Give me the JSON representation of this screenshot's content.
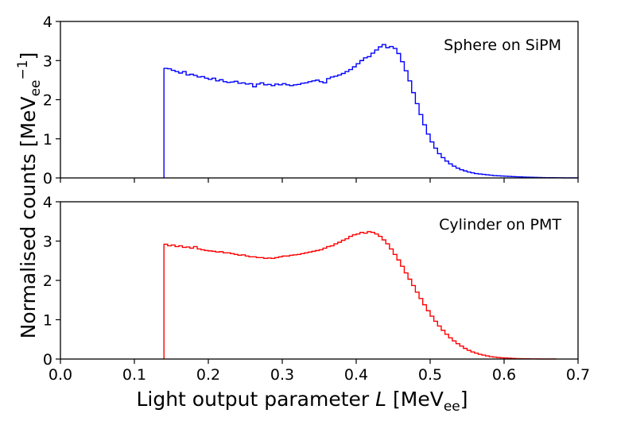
{
  "chart_data": {
    "type": "histogram",
    "xlabel": {
      "prefix": "Light output parameter ",
      "var": "L",
      "unit_open": " [MeV",
      "unit_sub": "ee",
      "unit_close": "]"
    },
    "ylabel": {
      "prefix": "Normalised counts [MeV",
      "sub": "ee",
      "sup": "−1",
      "close": "]"
    },
    "xlim": [
      0.0,
      0.7
    ],
    "ylim": [
      0,
      4
    ],
    "xticks": [
      "0.0",
      "0.1",
      "0.2",
      "0.3",
      "0.4",
      "0.5",
      "0.6",
      "0.7"
    ],
    "yticks": [
      "0",
      "1",
      "2",
      "3",
      "4"
    ],
    "bin_width": 0.005,
    "panels": [
      {
        "label": "Sphere on SiPM",
        "color": "#0000ff",
        "x_start": 0.14,
        "values": [
          2.8,
          2.79,
          2.75,
          2.72,
          2.68,
          2.72,
          2.63,
          2.65,
          2.62,
          2.58,
          2.59,
          2.55,
          2.52,
          2.55,
          2.48,
          2.51,
          2.46,
          2.44,
          2.45,
          2.47,
          2.42,
          2.43,
          2.4,
          2.41,
          2.33,
          2.4,
          2.43,
          2.38,
          2.39,
          2.36,
          2.4,
          2.38,
          2.41,
          2.38,
          2.36,
          2.38,
          2.39,
          2.42,
          2.43,
          2.46,
          2.48,
          2.5,
          2.46,
          2.43,
          2.54,
          2.58,
          2.6,
          2.63,
          2.67,
          2.72,
          2.77,
          2.84,
          2.92,
          3.0,
          3.07,
          3.1,
          3.19,
          3.27,
          3.35,
          3.41,
          3.33,
          3.36,
          3.31,
          3.18,
          2.97,
          2.74,
          2.48,
          2.18,
          1.9,
          1.62,
          1.36,
          1.12,
          0.92,
          0.76,
          0.62,
          0.52,
          0.43,
          0.36,
          0.3,
          0.25,
          0.21,
          0.18,
          0.15,
          0.13,
          0.11,
          0.1,
          0.09,
          0.08,
          0.07,
          0.06,
          0.055,
          0.05,
          0.045,
          0.04,
          0.035,
          0.03,
          0.026,
          0.022,
          0.019,
          0.016,
          0.013,
          0.011,
          0.009,
          0.007,
          0.006,
          0.005,
          0.004,
          0.003,
          0.002,
          0.002,
          0.001,
          0.001
        ]
      },
      {
        "label": "Cylinder on PMT",
        "color": "#ff0000",
        "x_start": 0.14,
        "values": [
          2.92,
          2.88,
          2.9,
          2.86,
          2.88,
          2.84,
          2.85,
          2.82,
          2.86,
          2.8,
          2.78,
          2.76,
          2.75,
          2.74,
          2.72,
          2.73,
          2.7,
          2.7,
          2.68,
          2.66,
          2.64,
          2.65,
          2.62,
          2.6,
          2.6,
          2.58,
          2.58,
          2.56,
          2.57,
          2.56,
          2.58,
          2.6,
          2.62,
          2.62,
          2.64,
          2.65,
          2.66,
          2.68,
          2.7,
          2.72,
          2.74,
          2.76,
          2.78,
          2.82,
          2.86,
          2.88,
          2.93,
          2.97,
          3.02,
          3.06,
          3.12,
          3.16,
          3.18,
          3.22,
          3.2,
          3.24,
          3.22,
          3.18,
          3.12,
          3.03,
          2.93,
          2.8,
          2.66,
          2.52,
          2.36,
          2.19,
          2.03,
          1.87,
          1.7,
          1.54,
          1.38,
          1.23,
          1.09,
          0.96,
          0.84,
          0.73,
          0.63,
          0.54,
          0.46,
          0.39,
          0.33,
          0.27,
          0.22,
          0.18,
          0.15,
          0.12,
          0.1,
          0.08,
          0.06,
          0.05,
          0.04,
          0.032,
          0.025,
          0.02,
          0.015,
          0.012,
          0.009,
          0.007,
          0.005,
          0.004,
          0.003,
          0.002,
          0.002,
          0.001,
          0.001,
          0.001
        ]
      }
    ]
  }
}
